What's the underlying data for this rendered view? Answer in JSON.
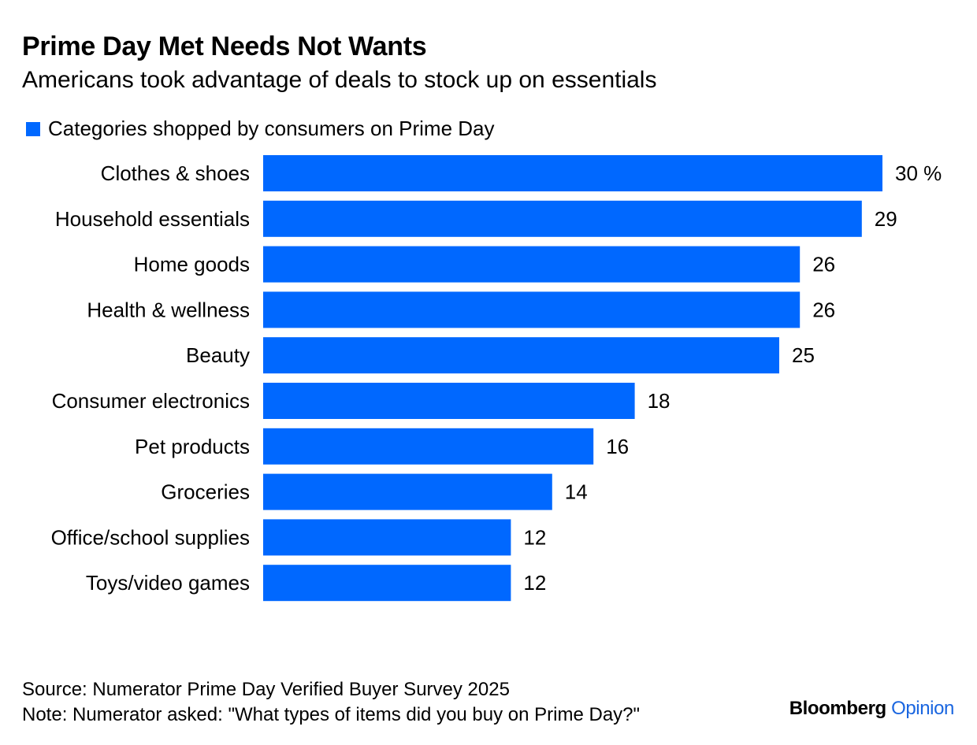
{
  "header": {
    "title": "Prime Day Met Needs Not Wants",
    "subtitle": "Americans took advantage of deals to stock up on essentials"
  },
  "legend": {
    "label": "Categories shopped by consumers on Prime Day"
  },
  "colors": {
    "bar": "#0068ff",
    "brand_accent": "#1a66e0",
    "text": "#000000"
  },
  "chart_data": {
    "type": "bar",
    "orientation": "horizontal",
    "categories": [
      "Clothes & shoes",
      "Household essentials",
      "Home goods",
      "Health & wellness",
      "Beauty",
      "Consumer electronics",
      "Pet products",
      "Groceries",
      "Office/school supplies",
      "Toys/video games"
    ],
    "series": [
      {
        "name": "Categories shopped by consumers on Prime Day",
        "values": [
          30,
          29,
          26,
          26,
          25,
          18,
          16,
          14,
          12,
          12
        ]
      }
    ],
    "data_labels": [
      "30 %",
      "29",
      "26",
      "26",
      "25",
      "18",
      "16",
      "14",
      "12",
      "12"
    ],
    "xlim": [
      0,
      30
    ],
    "unit": "%",
    "grid": false,
    "legend_position": "top-left"
  },
  "footer": {
    "source": "Source: Numerator Prime Day Verified Buyer Survey 2025",
    "note": "Note: Numerator asked: \"What types of items did you buy on Prime Day?\"",
    "brand_main": "Bloomberg",
    "brand_sub": "Opinion"
  }
}
